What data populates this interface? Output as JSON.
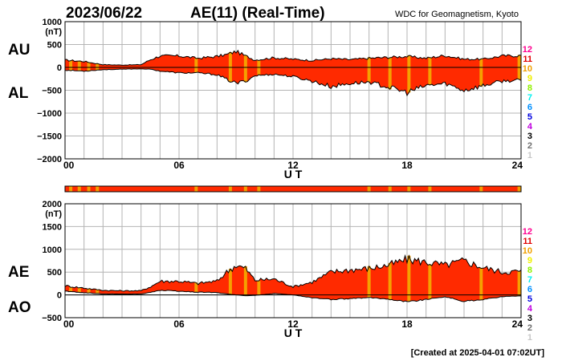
{
  "header": {
    "date": "2023/06/22",
    "title": "AE(11) (Real-Time)",
    "credit": "WDC for Geomagnetism, Kyoto"
  },
  "footer": {
    "created": "[Created at 2025-04-01 07:02UT]"
  },
  "colors": {
    "fill": "#ff2a00",
    "stripe": "#f5a000",
    "grid": "#b4b4b4",
    "line": "#000000"
  },
  "chart_data": [
    {
      "type": "area",
      "panel": "top",
      "series_labels": [
        "AU",
        "AL"
      ],
      "unit_label": "(nT)",
      "xlabel": "U T",
      "xlim": [
        0,
        24
      ],
      "ylim": [
        -2000,
        1000
      ],
      "y_ticks": [
        1000,
        500,
        0,
        -500,
        -1000,
        -1500,
        -2000
      ],
      "y_tick_labels": [
        "1000",
        "500",
        "0",
        "−500",
        "−1000",
        "−1500",
        "−2000"
      ],
      "x_ticks": [
        0,
        6,
        12,
        18,
        24
      ],
      "x_tick_labels": [
        "00",
        "06",
        "12",
        "18",
        "24"
      ],
      "grid": true,
      "upper": {
        "name": "AU",
        "x": [
          0,
          1,
          2,
          3,
          4,
          4.5,
          5,
          6,
          7,
          7.5,
          8,
          8.5,
          9,
          9.5,
          10,
          11,
          12,
          13,
          14,
          15,
          16,
          17,
          18,
          19,
          20,
          21,
          22,
          23,
          24
        ],
        "y": [
          160,
          130,
          60,
          50,
          60,
          170,
          250,
          250,
          200,
          220,
          240,
          280,
          350,
          250,
          160,
          210,
          180,
          150,
          190,
          170,
          200,
          220,
          240,
          200,
          260,
          180,
          180,
          250,
          260
        ]
      },
      "lower": {
        "name": "AL",
        "x": [
          0,
          1,
          2,
          3,
          4,
          4.5,
          5,
          6,
          7,
          7.5,
          8,
          8.5,
          9,
          9.5,
          10,
          11,
          12,
          13,
          14,
          15,
          16,
          17,
          18,
          19,
          20,
          21,
          22,
          23,
          24
        ],
        "y": [
          -60,
          -80,
          -50,
          -40,
          -30,
          -40,
          -80,
          -120,
          -120,
          -140,
          -160,
          -260,
          -350,
          -300,
          -180,
          -150,
          -200,
          -300,
          -420,
          -350,
          -320,
          -430,
          -550,
          -400,
          -350,
          -500,
          -400,
          -300,
          -280
        ]
      }
    },
    {
      "type": "area",
      "panel": "bottom",
      "series_labels": [
        "AE",
        "AO"
      ],
      "unit_label": "(nT)",
      "xlabel": "U T",
      "xlim": [
        0,
        24
      ],
      "ylim": [
        -500,
        2000
      ],
      "y_ticks": [
        2000,
        1500,
        1000,
        500,
        0,
        -500
      ],
      "y_tick_labels": [
        "2000",
        "1500",
        "1000",
        "500",
        "0",
        "−500"
      ],
      "x_ticks": [
        0,
        6,
        12,
        18,
        24
      ],
      "x_tick_labels": [
        "00",
        "06",
        "12",
        "18",
        "24"
      ],
      "grid": true,
      "upper": {
        "name": "AE",
        "x": [
          0,
          1,
          2,
          3,
          4,
          4.5,
          5,
          6,
          7,
          7.5,
          8,
          8.5,
          9,
          9.5,
          10,
          11,
          12,
          13,
          14,
          15,
          16,
          17,
          18,
          19,
          20,
          21,
          22,
          23,
          24
        ],
        "y": [
          200,
          150,
          100,
          90,
          90,
          180,
          300,
          300,
          250,
          280,
          300,
          500,
          650,
          580,
          320,
          350,
          180,
          280,
          500,
          550,
          580,
          650,
          780,
          720,
          650,
          750,
          600,
          500,
          520
        ]
      },
      "lower": {
        "name": "AO",
        "x": [
          0,
          1,
          2,
          3,
          4,
          4.5,
          5,
          6,
          7,
          7.5,
          8,
          8.5,
          9,
          9.5,
          10,
          11,
          12,
          13,
          14,
          15,
          16,
          17,
          18,
          19,
          20,
          21,
          22,
          23,
          24
        ],
        "y": [
          80,
          50,
          20,
          20,
          20,
          60,
          100,
          80,
          60,
          60,
          50,
          20,
          0,
          -20,
          -10,
          30,
          0,
          -60,
          -100,
          -80,
          -60,
          -90,
          -150,
          -100,
          -40,
          -140,
          -100,
          -40,
          -20
        ]
      }
    }
  ],
  "stations": {
    "labels": [
      "12",
      "11",
      "10",
      "9",
      "8",
      "7",
      "6",
      "5",
      "4",
      "3",
      "2",
      "1"
    ],
    "colors": [
      "#ff0090",
      "#e00000",
      "#f0a000",
      "#f0f000",
      "#90f000",
      "#00f0f0",
      "#0090ff",
      "#0000e0",
      "#c000e0",
      "#000000",
      "#707070",
      "#c8c8c8"
    ]
  },
  "stripes_ut": [
    0.3,
    0.75,
    1.25,
    1.7,
    6.9,
    8.7,
    9.5,
    10.2,
    16.0,
    17.1,
    18.1,
    19.2,
    21.9,
    23.9
  ]
}
